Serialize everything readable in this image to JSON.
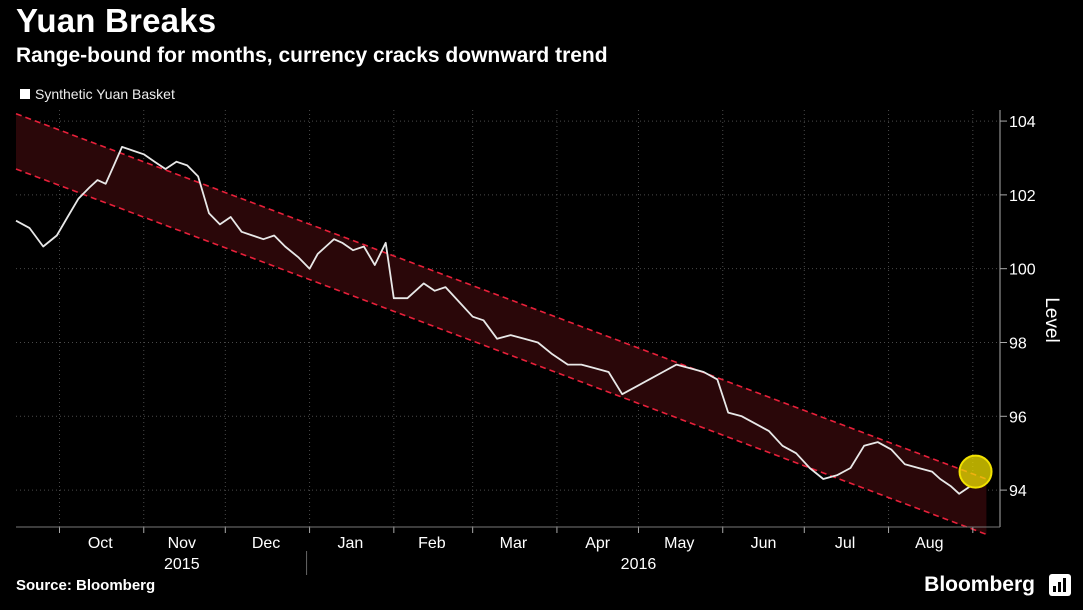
{
  "title": "Yuan Breaks",
  "subtitle": "Range-bound for months, currency cracks downward trend",
  "source": "Source: Bloomberg",
  "brand": "Bloomberg",
  "colors": {
    "line": "#e8e8e8",
    "band_fill": "#2a0709",
    "band_edge": "#e8203a",
    "marker": "#f2e200"
  },
  "chart_data": {
    "type": "line",
    "ylabel": "Level",
    "ylim": [
      93,
      104.3
    ],
    "yticks": [
      94,
      96,
      98,
      100,
      102,
      104
    ],
    "months": [
      "Oct",
      "Nov",
      "Dec",
      "Jan",
      "Feb",
      "Mar",
      "Apr",
      "May",
      "Jun",
      "Jul",
      "Aug"
    ],
    "years": [
      "2015",
      "2016"
    ],
    "series": [
      {
        "name": "Synthetic Yuan Basket",
        "x": [
          "2015-09-15",
          "2015-09-20",
          "2015-09-25",
          "2015-09-30",
          "2015-10-04",
          "2015-10-08",
          "2015-10-12",
          "2015-10-15",
          "2015-10-18",
          "2015-10-21",
          "2015-10-24",
          "2015-10-28",
          "2015-11-01",
          "2015-11-05",
          "2015-11-09",
          "2015-11-13",
          "2015-11-17",
          "2015-11-21",
          "2015-11-25",
          "2015-11-29",
          "2015-12-03",
          "2015-12-07",
          "2015-12-11",
          "2015-12-15",
          "2015-12-19",
          "2015-12-23",
          "2015-12-28",
          "2016-01-01",
          "2016-01-04",
          "2016-01-07",
          "2016-01-10",
          "2016-01-13",
          "2016-01-17",
          "2016-01-21",
          "2016-01-25",
          "2016-01-29",
          "2016-02-01",
          "2016-02-03",
          "2016-02-06",
          "2016-02-12",
          "2016-02-16",
          "2016-02-20",
          "2016-02-25",
          "2016-03-01",
          "2016-03-05",
          "2016-03-10",
          "2016-03-15",
          "2016-03-20",
          "2016-03-25",
          "2016-03-30",
          "2016-04-05",
          "2016-04-10",
          "2016-04-15",
          "2016-04-20",
          "2016-04-25",
          "2016-04-30",
          "2016-05-05",
          "2016-05-10",
          "2016-05-15",
          "2016-05-20",
          "2016-05-25",
          "2016-05-30",
          "2016-06-03",
          "2016-06-08",
          "2016-06-13",
          "2016-06-18",
          "2016-06-23",
          "2016-06-28",
          "2016-07-03",
          "2016-07-08",
          "2016-07-13",
          "2016-07-18",
          "2016-07-23",
          "2016-07-28",
          "2016-08-02",
          "2016-08-07",
          "2016-08-12",
          "2016-08-17",
          "2016-08-20",
          "2016-08-24",
          "2016-08-27",
          "2016-08-31"
        ],
        "values": [
          101.3,
          101.1,
          100.6,
          100.9,
          101.4,
          101.9,
          102.2,
          102.4,
          102.3,
          102.8,
          103.3,
          103.2,
          103.1,
          102.9,
          102.7,
          102.9,
          102.8,
          102.5,
          101.5,
          101.2,
          101.4,
          101.0,
          100.9,
          100.8,
          100.9,
          100.6,
          100.3,
          100.0,
          100.4,
          100.6,
          100.8,
          100.7,
          100.5,
          100.6,
          100.1,
          100.7,
          99.2,
          99.2,
          99.2,
          99.6,
          99.4,
          99.5,
          99.1,
          98.7,
          98.6,
          98.1,
          98.2,
          98.1,
          98.0,
          97.7,
          97.4,
          97.4,
          97.3,
          97.2,
          96.6,
          96.8,
          97.0,
          97.2,
          97.4,
          97.3,
          97.2,
          97.0,
          96.1,
          96.0,
          95.8,
          95.6,
          95.2,
          95.0,
          94.6,
          94.3,
          94.4,
          94.6,
          95.2,
          95.3,
          95.1,
          94.7,
          94.6,
          94.5,
          94.3,
          94.1,
          93.9,
          94.1
        ]
      }
    ],
    "band": {
      "start": "2015-09-15",
      "end": "2016-09-06",
      "upper": [
        104.2,
        94.3
      ],
      "lower": [
        102.7,
        92.8
      ]
    },
    "highlight": {
      "x": "2016-09-02",
      "y": 94.5
    }
  }
}
